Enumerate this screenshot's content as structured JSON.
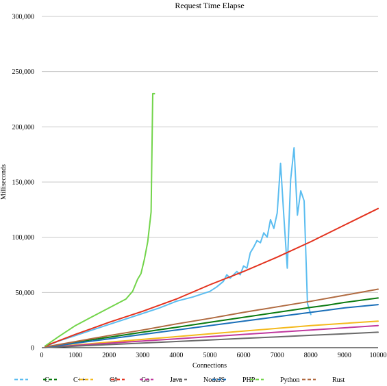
{
  "chart_data": {
    "type": "line",
    "title": "Request Time Elapse",
    "xlabel": "Connections",
    "ylabel": "Milliseconds",
    "xlim": [
      0,
      10000
    ],
    "ylim": [
      0,
      300000
    ],
    "x_ticks": [
      "0",
      "1000",
      "2000",
      "3000",
      "4000",
      "5000",
      "6000",
      "7000",
      "8000",
      "9000",
      "10000"
    ],
    "y_ticks": [
      "0",
      "50,000",
      "100,000",
      "150,000",
      "200,000",
      "250,000",
      "300,000"
    ],
    "grid": "horizontal",
    "legend_position": "bottom",
    "series": [
      {
        "name": "C",
        "color": "#5bbdf0",
        "x": [
          100,
          500,
          1000,
          1500,
          2000,
          2500,
          3000,
          3500,
          4000,
          4500,
          5000,
          5200,
          5400,
          5500,
          5600,
          5800,
          5900,
          6000,
          6100,
          6200,
          6300,
          6400,
          6500,
          6600,
          6700,
          6800,
          6900,
          7000,
          7100,
          7200,
          7300,
          7400,
          7500,
          7600,
          7700,
          7800,
          7900,
          8000
        ],
        "y": [
          1000,
          6000,
          11000,
          16000,
          21000,
          26000,
          31000,
          36000,
          42000,
          46000,
          51000,
          55000,
          60000,
          66000,
          63000,
          69000,
          66000,
          74000,
          72000,
          86000,
          91000,
          97000,
          95000,
          104000,
          100000,
          116000,
          108000,
          122000,
          167000,
          118000,
          72000,
          152000,
          181000,
          120000,
          142000,
          133000,
          40000,
          30000
        ]
      },
      {
        "name": "C++",
        "color": "#0a7a10",
        "x": [
          100,
          1000,
          2000,
          3000,
          4000,
          5000,
          6000,
          7000,
          8000,
          8500,
          9000,
          9500,
          10000
        ],
        "y": [
          500,
          5000,
          9500,
          14000,
          18500,
          23000,
          27500,
          32000,
          36500,
          38500,
          41000,
          43000,
          45000
        ]
      },
      {
        "name": "C#",
        "color": "#f4b91c",
        "x": [
          100,
          1000,
          2000,
          3000,
          4000,
          5000,
          6000,
          7000,
          8000,
          9000,
          10000
        ],
        "y": [
          300,
          2500,
          5000,
          7500,
          10000,
          12500,
          15000,
          17500,
          20000,
          22000,
          24000
        ]
      },
      {
        "name": "Go",
        "color": "#e3321e",
        "x": [
          100,
          1000,
          2000,
          3000,
          4000,
          5000,
          6000,
          7000,
          8000,
          9000,
          10000
        ],
        "y": [
          1500,
          12000,
          23000,
          33000,
          44000,
          57000,
          69000,
          82000,
          96000,
          111000,
          126000
        ]
      },
      {
        "name": "Java",
        "color": "#c0389e",
        "x": [
          100,
          1000,
          2000,
          3000,
          4000,
          5000,
          6000,
          7000,
          8000,
          9000,
          10000
        ],
        "y": [
          200,
          2000,
          4000,
          6000,
          8000,
          10000,
          12000,
          14000,
          16000,
          18000,
          20000
        ]
      },
      {
        "name": "NodeJS",
        "color": "#6a6a6a",
        "x": [
          100,
          1000,
          2000,
          3000,
          4000,
          5000,
          6000,
          7000,
          8000,
          9000,
          10000
        ],
        "y": [
          100,
          1400,
          2800,
          4200,
          5600,
          7000,
          8400,
          9800,
          11200,
          12600,
          14000
        ]
      },
      {
        "name": "PHP",
        "color": "#1a6fb8",
        "x": [
          100,
          1000,
          2000,
          3000,
          4000,
          5000,
          6000,
          7000,
          8000,
          9000,
          10000
        ],
        "y": [
          400,
          4000,
          8000,
          12000,
          16000,
          20000,
          24000,
          28000,
          32000,
          36000,
          39000
        ]
      },
      {
        "name": "Python",
        "color": "#72d44a",
        "x": [
          100,
          500,
          1000,
          1500,
          2000,
          2500,
          2700,
          2850,
          2950,
          3050,
          3150,
          3250,
          3300,
          3350
        ],
        "y": [
          1500,
          10000,
          20000,
          28000,
          36000,
          44000,
          51000,
          62000,
          67000,
          80000,
          96000,
          123000,
          230000,
          230000
        ]
      },
      {
        "name": "Rust",
        "color": "#b06a40",
        "x": [
          100,
          1000,
          2000,
          3000,
          4000,
          5000,
          6000,
          7000,
          8000,
          9000,
          10000
        ],
        "y": [
          600,
          5500,
          11000,
          16000,
          21500,
          26500,
          32000,
          37000,
          42000,
          47500,
          53000
        ]
      }
    ]
  }
}
